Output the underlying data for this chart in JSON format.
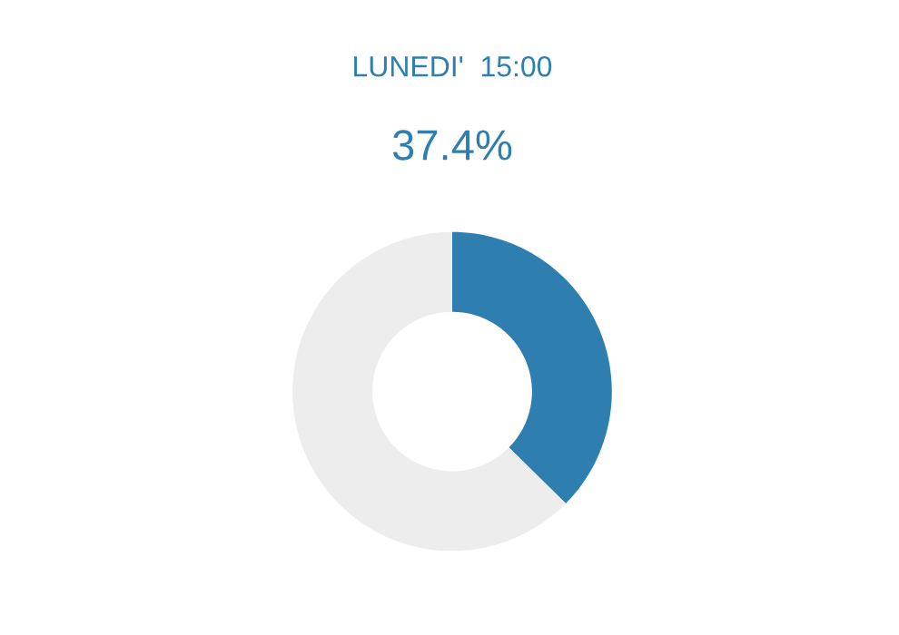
{
  "chart_data": {
    "type": "donut",
    "title": "LUNEDI'  15:00",
    "subtitle": "37.4%",
    "categories": [
      null,
      null
    ],
    "values": [
      37.4,
      62.6
    ],
    "colors": [
      "#2e7eb0",
      "#ededed"
    ]
  }
}
